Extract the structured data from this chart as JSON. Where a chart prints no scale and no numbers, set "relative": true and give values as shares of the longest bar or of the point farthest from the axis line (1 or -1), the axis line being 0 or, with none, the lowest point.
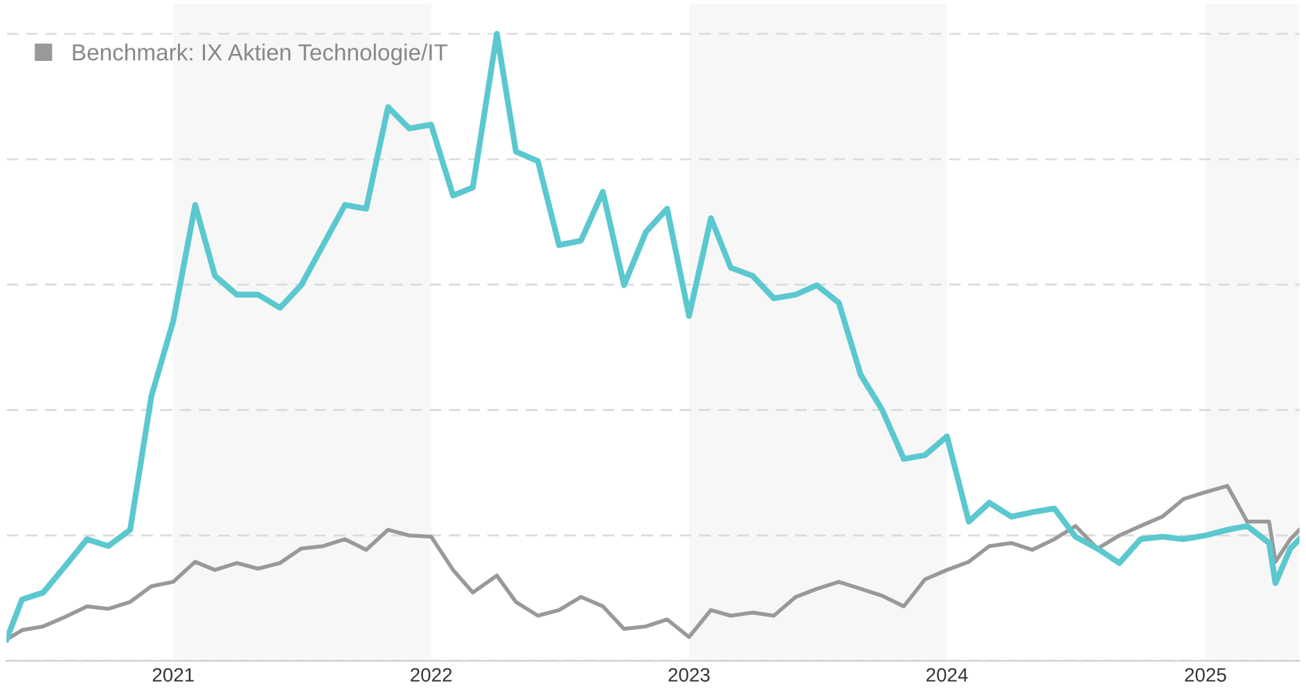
{
  "chart_data": {
    "type": "line",
    "relative": true,
    "grid": "y",
    "legend": "top left",
    "tick_labels": "x",
    "marker": "none",
    "line_style": "solid",
    "x": [
      "2020-05-10",
      "2020-06-01",
      "2020-07-01",
      "2020-08-01",
      "2020-09-01",
      "2020-10-01",
      "2020-11-01",
      "2020-12-01",
      "2021-01-01",
      "2021-02-01",
      "2021-03-01",
      "2021-04-01",
      "2021-05-01",
      "2021-06-01",
      "2021-07-01",
      "2021-08-01",
      "2021-09-01",
      "2021-10-01",
      "2021-11-01",
      "2021-12-01",
      "2022-01-01",
      "2022-02-01",
      "2022-03-01",
      "2022-04-04",
      "2022-05-01",
      "2022-06-01",
      "2022-07-01",
      "2022-08-01",
      "2022-09-01",
      "2022-10-01",
      "2022-11-01",
      "2022-12-01",
      "2023-01-01",
      "2023-02-01",
      "2023-03-01",
      "2023-04-01",
      "2023-05-01",
      "2023-06-01",
      "2023-07-01",
      "2023-08-01",
      "2023-09-01",
      "2023-10-01",
      "2023-11-01",
      "2023-12-01",
      "2024-01-01",
      "2024-02-01",
      "2024-03-01",
      "2024-04-01",
      "2024-05-01",
      "2024-06-01",
      "2024-07-01",
      "2024-08-01",
      "2024-09-01",
      "2024-10-01",
      "2024-11-01",
      "2024-12-01",
      "2025-01-01",
      "2025-02-01",
      "2025-03-01",
      "2025-04-01",
      "2025-04-10",
      "2025-05-01",
      "2025-05-14"
    ],
    "series": [
      {
        "color": "#5bc8cf",
        "values": [
          0.034,
          0.098,
          0.109,
          0.151,
          0.194,
          0.183,
          0.209,
          0.422,
          0.542,
          0.727,
          0.614,
          0.584,
          0.584,
          0.563,
          0.599,
          0.663,
          0.727,
          0.721,
          0.883,
          0.849,
          0.855,
          0.742,
          0.755,
          1.0,
          0.812,
          0.797,
          0.663,
          0.67,
          0.748,
          0.599,
          0.684,
          0.721,
          0.55,
          0.706,
          0.627,
          0.614,
          0.578,
          0.584,
          0.599,
          0.571,
          0.456,
          0.401,
          0.322,
          0.328,
          0.358,
          0.222,
          0.252,
          0.23,
          0.237,
          0.243,
          0.198,
          0.179,
          0.156,
          0.194,
          0.198,
          0.194,
          0.2,
          0.209,
          0.215,
          0.188,
          0.124,
          0.179,
          0.194
        ]
      },
      {
        "name": "Benchmark: IX Aktien Technologie/IT",
        "color": "#999999",
        "values": [
          0.034,
          0.049,
          0.055,
          0.07,
          0.087,
          0.083,
          0.094,
          0.119,
          0.126,
          0.158,
          0.145,
          0.156,
          0.147,
          0.156,
          0.179,
          0.183,
          0.194,
          0.177,
          0.209,
          0.2,
          0.198,
          0.145,
          0.109,
          0.136,
          0.094,
          0.072,
          0.081,
          0.102,
          0.087,
          0.051,
          0.055,
          0.066,
          0.038,
          0.081,
          0.072,
          0.077,
          0.072,
          0.102,
          0.115,
          0.126,
          0.115,
          0.104,
          0.087,
          0.13,
          0.145,
          0.158,
          0.183,
          0.188,
          0.177,
          0.194,
          0.215,
          0.179,
          0.2,
          0.215,
          0.23,
          0.258,
          0.269,
          0.279,
          0.222,
          0.222,
          0.158,
          0.194,
          0.209
        ]
      }
    ],
    "xlim": [
      "2020-05-10",
      "2025-05-14"
    ],
    "xticks": [
      {
        "value": "2021-01-01",
        "label": "2021"
      },
      {
        "value": "2022-01-01",
        "label": "2022"
      },
      {
        "value": "2023-01-01",
        "label": "2023"
      },
      {
        "value": "2024-01-01",
        "label": "2024"
      },
      {
        "value": "2025-01-01",
        "label": "2025"
      }
    ],
    "bands": [
      {
        "axis": "x",
        "from": "2021-01-01",
        "to": "2022-01-01",
        "color": "#f7f7f7"
      },
      {
        "axis": "x",
        "from": "2023-01-01",
        "to": "2024-01-01",
        "color": "#f7f7f7"
      },
      {
        "axis": "x",
        "from": "2025-01-01",
        "to": "2025-05-14",
        "color": "#f7f7f7"
      }
    ]
  }
}
